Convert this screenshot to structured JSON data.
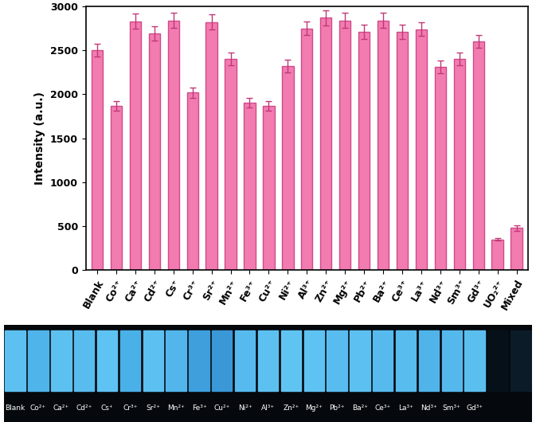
{
  "chart_data": {
    "type": "bar",
    "y_label": "Intensity (a.u.)",
    "categories": [
      "Blank",
      "Co²⁺",
      "Ca²⁺",
      "Cd²⁺",
      "Cs⁺",
      "Cr³⁺",
      "Sr²⁺",
      "Mn²⁺",
      "Fe³⁺",
      "Cu²⁺",
      "Ni²⁺",
      "Al³⁺",
      "Zn²⁺",
      "Mg²⁺",
      "Pb²⁺",
      "Ba²⁺",
      "Ce³⁺",
      "La³⁺",
      "Nd³⁺",
      "Sm³⁺",
      "Gd³⁺",
      "UO₂²⁺",
      "Mixed"
    ],
    "values": [
      2500,
      1870,
      2830,
      2690,
      2840,
      2020,
      2820,
      2400,
      1900,
      1870,
      2320,
      2750,
      2870,
      2840,
      2710,
      2840,
      2710,
      2740,
      2310,
      2400,
      2600,
      350,
      480
    ],
    "errors": [
      75,
      55,
      85,
      80,
      85,
      60,
      85,
      70,
      55,
      55,
      70,
      80,
      85,
      85,
      80,
      85,
      80,
      80,
      70,
      70,
      75,
      10,
      30
    ],
    "color": "#f27bb0",
    "ylim": [
      0,
      3000
    ],
    "yticks": [
      0,
      500,
      1000,
      1500,
      2000,
      2500,
      3000
    ],
    "grid": false
  },
  "image_strip": {
    "labels": [
      "Blank",
      "Co²⁺",
      "Ca²⁺",
      "Cd²⁺",
      "Cs⁺",
      "Cr³⁺",
      "Sr²⁺",
      "Mn²⁺",
      "Fe³⁺",
      "Cu²⁺",
      "Ni²⁺",
      "Al³⁺",
      "Zn²⁺",
      "Mg²⁺",
      "Pb²⁺",
      "Ba²⁺",
      "Ce³⁺",
      "La³⁺",
      "Nd³⁺",
      "Sm³⁺",
      "Gd³⁺",
      null,
      null
    ],
    "colors": [
      "#5cc0f0",
      "#4fb4ea",
      "#5cc0f0",
      "#58bcee",
      "#5ec2f2",
      "#4ab0e8",
      "#5cc0f0",
      "#52b6ec",
      "#3e9fdc",
      "#3a98d6",
      "#56baee",
      "#5cc0f0",
      "#60c4f2",
      "#5ec2f2",
      "#58bcee",
      "#5cc0f0",
      "#56baee",
      "#58bcee",
      "#50b4ea",
      "#54b8ec",
      "#5abeee",
      "#061018",
      "#0b1c28"
    ]
  }
}
